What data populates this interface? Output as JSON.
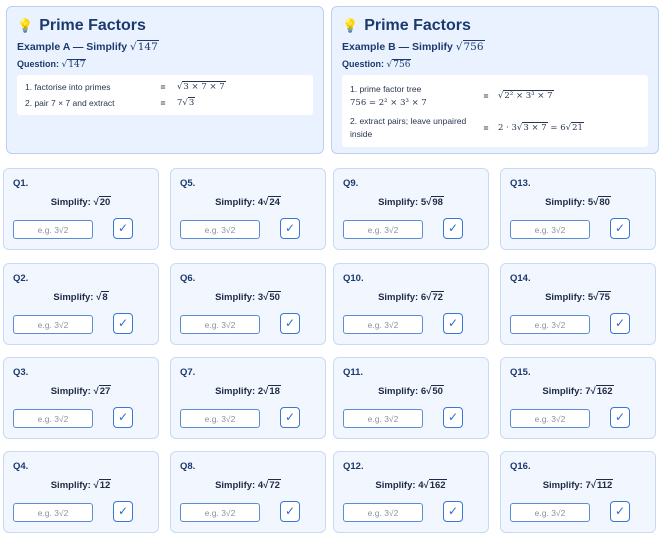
{
  "example_a": {
    "title": "Prime Factors",
    "subtitle_prefix": "Example A — Simplify",
    "radicand": "147",
    "question_label": "Question:",
    "steps": [
      {
        "label_text": "1. factorise into primes",
        "result": "3 × 7 × 7"
      },
      {
        "label_text": "2. pair 7 × 7 and extract",
        "coef": "7",
        "result": "3"
      }
    ]
  },
  "example_b": {
    "title": "Prime Factors",
    "subtitle_prefix": "Example B — Simplify",
    "radicand": "756",
    "question_label": "Question:",
    "steps": [
      {
        "label_text": "1. prime factor tree",
        "tree": "756 = 2² × 3³ × 7",
        "result": "2² × 3³ × 7"
      },
      {
        "label_text": "2. extract pairs; leave unpaired inside",
        "coef": "2 · 3",
        "inner": "3 × 7",
        "final_coef": "6",
        "final": "21"
      }
    ]
  },
  "answer_placeholder": "e.g. 3√2",
  "check_icon": "check-icon",
  "simplify_label": "Simplify:",
  "questions": [
    {
      "label": "Q1.",
      "coef": "",
      "radicand": "20"
    },
    {
      "label": "Q2.",
      "coef": "",
      "radicand": "8"
    },
    {
      "label": "Q3.",
      "coef": "",
      "radicand": "27"
    },
    {
      "label": "Q4.",
      "coef": "",
      "radicand": "12"
    },
    {
      "label": "Q5.",
      "coef": "4",
      "radicand": "24"
    },
    {
      "label": "Q6.",
      "coef": "3",
      "radicand": "50"
    },
    {
      "label": "Q7.",
      "coef": "2",
      "radicand": "18"
    },
    {
      "label": "Q8.",
      "coef": "4",
      "radicand": "72"
    },
    {
      "label": "Q9.",
      "coef": "5",
      "radicand": "98"
    },
    {
      "label": "Q10.",
      "coef": "6",
      "radicand": "72"
    },
    {
      "label": "Q11.",
      "coef": "6",
      "radicand": "50"
    },
    {
      "label": "Q12.",
      "coef": "4",
      "radicand": "162"
    },
    {
      "label": "Q13.",
      "coef": "5",
      "radicand": "80"
    },
    {
      "label": "Q14.",
      "coef": "5",
      "radicand": "75"
    },
    {
      "label": "Q15.",
      "coef": "7",
      "radicand": "162"
    },
    {
      "label": "Q16.",
      "coef": "7",
      "radicand": "112"
    }
  ]
}
